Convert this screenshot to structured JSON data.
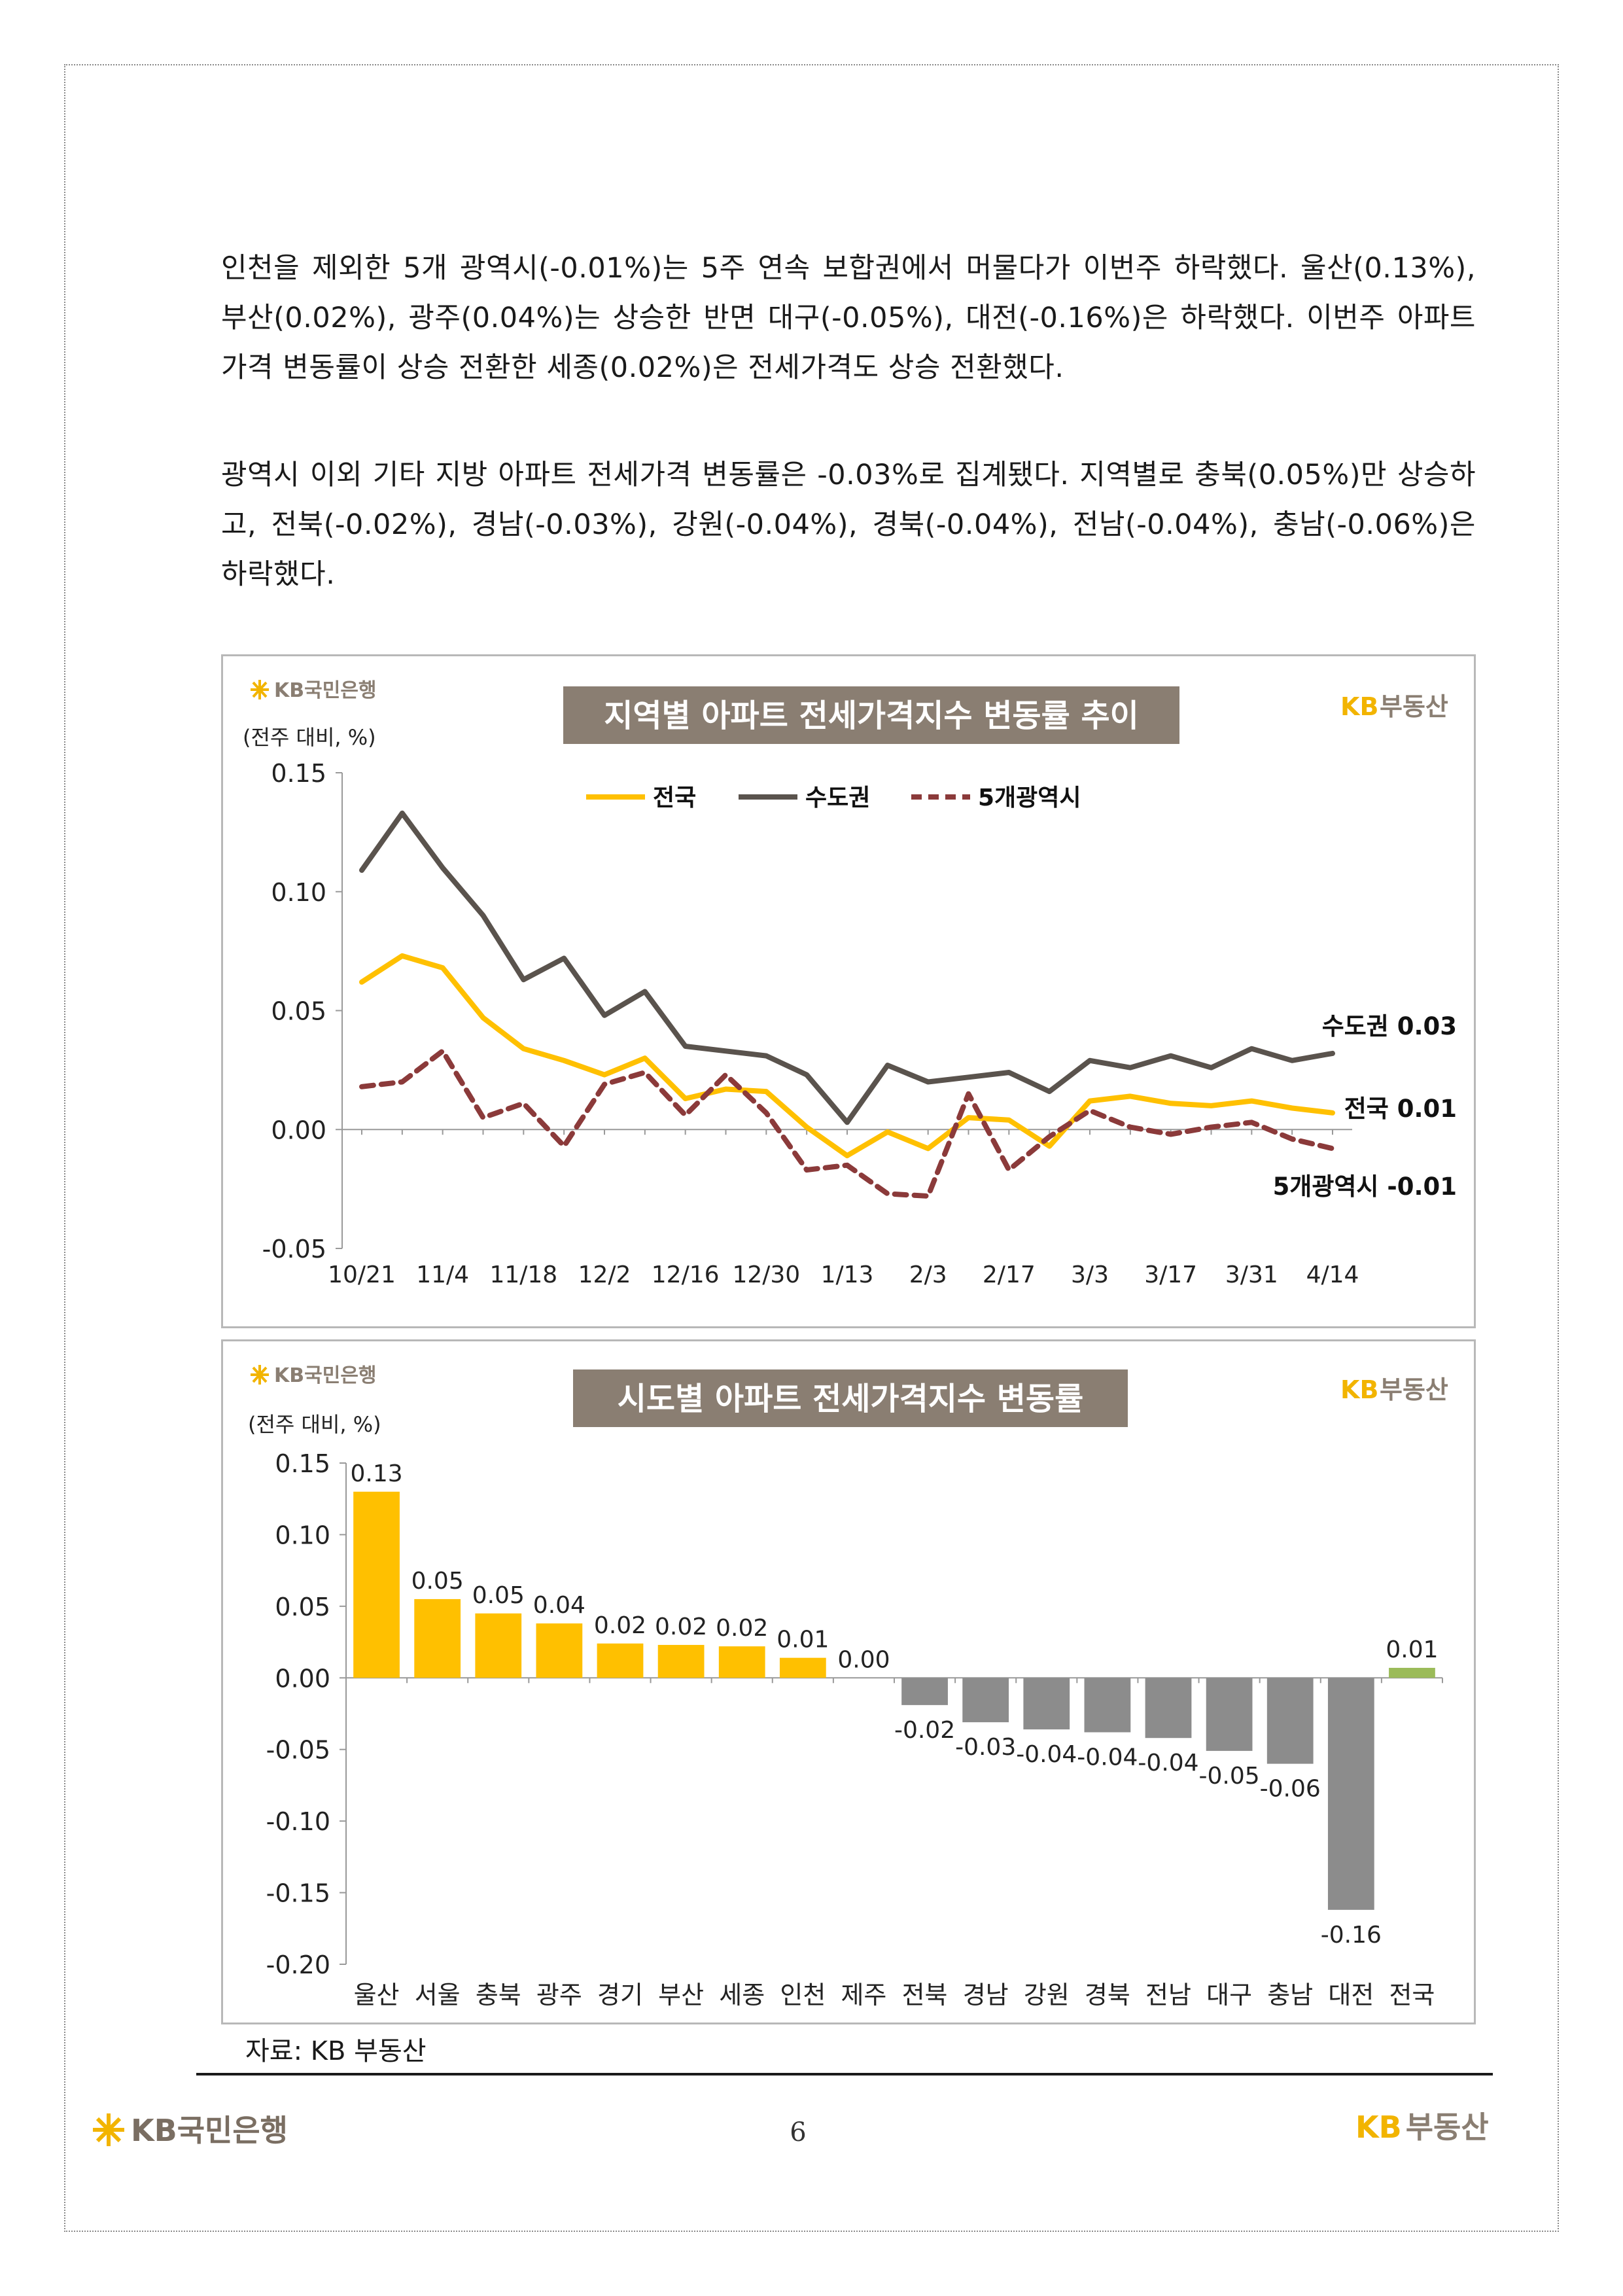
{
  "paragraphs": [
    "인천을 제외한 5개 광역시(-0.01%)는 5주 연속 보합권에서 머물다가 이번주 하락했다. 울산(0.13%), 부산(0.02%), 광주(0.04%)는 상승한 반면 대구(-0.05%), 대전(-0.16%)은 하락했다. 이번주 아파트 가격 변동률이 상승 전환한 세종(0.02%)은 전세가격도 상승 전환했다.",
    "광역시 이외 기타 지방 아파트 전세가격 변동률은 -0.03%로 집계됐다. 지역별로 충북(0.05%)만 상승하고, 전북(-0.02%), 경남(-0.03%), 강원(-0.04%), 경북(-0.04%), 전남(-0.04%), 충남(-0.06%)은 하락했다."
  ],
  "branding": {
    "bank_logo": "KB국민은행",
    "realty_logo_kb": "KB",
    "realty_logo_text": "부동산"
  },
  "colors": {
    "yellow": "#FFC000",
    "dark": "#5A534D",
    "red_dash": "#8B3A3A",
    "gray_bar": "#8C8C8C",
    "green_bar": "#9BBB59",
    "title_bg": "#8A7E72"
  },
  "source": "자료: KB 부동산",
  "page_number": "6",
  "chart_data": [
    {
      "type": "line",
      "title": "지역별 아파트 전세가격지수 변동률 추이",
      "unit_label": "(전주 대비, %)",
      "ylim": [
        -0.05,
        0.15
      ],
      "yticks": [
        "0.15",
        "0.10",
        "0.05",
        "0.00",
        "-0.05"
      ],
      "ytick_values": [
        0.15,
        0.1,
        0.05,
        0.0,
        -0.05
      ],
      "xtick_labels": [
        "10/21",
        "11/4",
        "11/18",
        "12/2",
        "12/16",
        "12/30",
        "1/13",
        "2/3",
        "2/17",
        "3/3",
        "3/17",
        "3/31",
        "4/14"
      ],
      "xtick_positions": [
        0,
        2,
        4,
        6,
        8,
        10,
        12,
        14,
        16,
        18,
        20,
        22,
        24
      ],
      "n_points": 25,
      "series": [
        {
          "name": "전국",
          "color": "#FFC000",
          "style": "solid",
          "values": [
            0.062,
            0.073,
            0.068,
            0.047,
            0.034,
            0.029,
            0.023,
            0.03,
            0.013,
            0.017,
            0.016,
            0.001,
            -0.011,
            -0.001,
            -0.008,
            0.005,
            0.004,
            -0.007,
            0.012,
            0.014,
            0.011,
            0.01,
            0.012,
            0.009,
            0.007
          ],
          "end_label": "전국 0.01"
        },
        {
          "name": "수도권",
          "color": "#5A534D",
          "style": "solid",
          "values": [
            0.109,
            0.133,
            0.11,
            0.09,
            0.063,
            0.072,
            0.048,
            0.058,
            0.035,
            0.033,
            0.031,
            0.023,
            0.003,
            0.027,
            0.02,
            0.022,
            0.024,
            0.016,
            0.029,
            0.026,
            0.031,
            0.026,
            0.034,
            0.029,
            0.032
          ],
          "end_label": "수도권 0.03"
        },
        {
          "name": "5개광역시",
          "color": "#8B3A3A",
          "style": "dashed",
          "values": [
            0.018,
            0.02,
            0.033,
            0.005,
            0.011,
            -0.007,
            0.019,
            0.024,
            0.006,
            0.023,
            0.007,
            -0.017,
            -0.015,
            -0.027,
            -0.028,
            0.015,
            -0.017,
            -0.003,
            0.008,
            0.001,
            -0.002,
            0.001,
            0.003,
            -0.004,
            -0.008
          ],
          "end_label": "5개광역시 -0.01"
        }
      ]
    },
    {
      "type": "bar",
      "title": "시도별 아파트 전세가격지수 변동률",
      "unit_label": "(전주 대비, %)",
      "ylim": [
        -0.2,
        0.15
      ],
      "yticks": [
        "0.15",
        "0.10",
        "0.05",
        "0.00",
        "-0.05",
        "-0.10",
        "-0.15",
        "-0.20"
      ],
      "ytick_values": [
        0.15,
        0.1,
        0.05,
        0.0,
        -0.05,
        -0.1,
        -0.15,
        -0.2
      ],
      "categories": [
        "울산",
        "서울",
        "충북",
        "광주",
        "경기",
        "부산",
        "세종",
        "인천",
        "제주",
        "전북",
        "경남",
        "강원",
        "경북",
        "전남",
        "대구",
        "충남",
        "대전",
        "전국"
      ],
      "values": [
        0.13,
        0.055,
        0.045,
        0.038,
        0.024,
        0.023,
        0.022,
        0.014,
        0.0,
        -0.019,
        -0.031,
        -0.036,
        -0.038,
        -0.042,
        -0.051,
        -0.06,
        -0.162,
        0.007
      ],
      "value_labels": [
        "0.13",
        "0.05",
        "0.05",
        "0.04",
        "0.02",
        "0.02",
        "0.02",
        "0.01",
        "0.00",
        "-0.02",
        "-0.03",
        "-0.04",
        "-0.04",
        "-0.04",
        "-0.05",
        "-0.06",
        "-0.16",
        "0.01"
      ]
    }
  ]
}
